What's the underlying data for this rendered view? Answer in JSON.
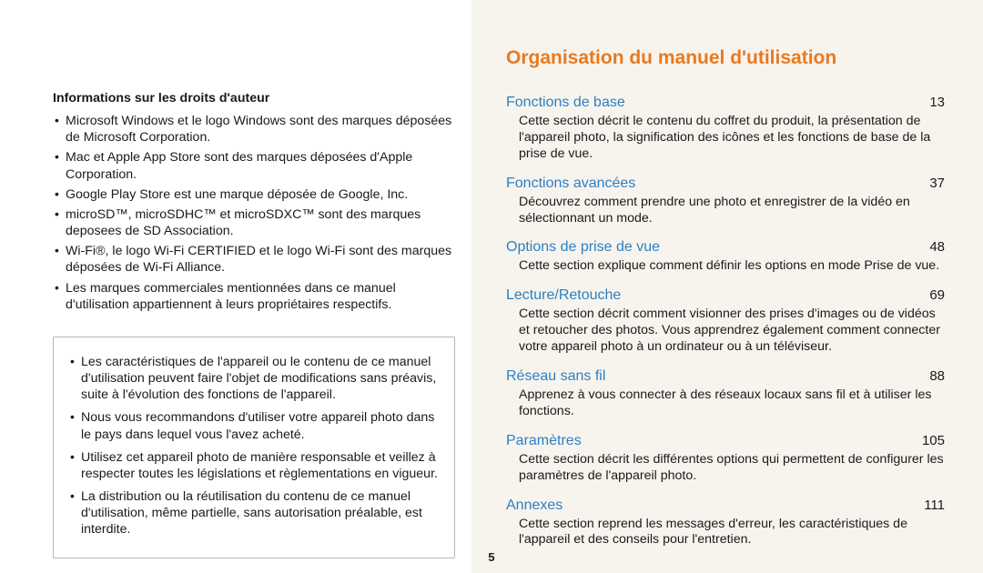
{
  "left": {
    "heading": "Informations sur les droits d'auteur",
    "bullets": [
      "Microsoft Windows et le logo Windows sont des marques déposées de Microsoft Corporation.",
      "Mac et Apple App Store sont des marques déposées d'Apple Corporation.",
      "Google Play Store est une marque déposée de Google, Inc.",
      "microSD™, microSDHC™ et microSDXC™ sont des marques deposees de SD Association.",
      "Wi-Fi®, le logo Wi-Fi CERTIFIED et le logo Wi-Fi sont des marques déposées de Wi-Fi Alliance.",
      "Les marques commerciales mentionnées dans ce manuel d'utilisation appartiennent à leurs propriétaires respectifs."
    ],
    "boxed_bullets": [
      "Les caractéristiques de l'appareil ou le contenu de ce manuel d'utilisation peuvent faire l'objet de modifications sans préavis, suite à l'évolution des fonctions de l'appareil.",
      "Nous vous recommandons d'utiliser votre appareil photo dans le pays dans lequel vous l'avez acheté.",
      "Utilisez cet appareil photo de manière responsable et veillez à respecter toutes les législations et règlementations en vigueur.",
      "La distribution ou la réutilisation du contenu de ce manuel d'utilisation, même partielle, sans autorisation préalable, est interdite."
    ]
  },
  "right": {
    "title": "Organisation du manuel d'utilisation",
    "items": [
      {
        "title": "Fonctions de base",
        "page": "13",
        "desc": "Cette section décrit le contenu du coffret du produit, la présentation de l'appareil photo, la signification des icônes et les fonctions de base de la prise de vue."
      },
      {
        "title": "Fonctions avancées",
        "page": "37",
        "desc": "Découvrez comment prendre une photo et enregistrer de la vidéo en sélectionnant un mode."
      },
      {
        "title": "Options de prise de vue",
        "page": "48",
        "desc": "Cette section explique comment définir les options en mode Prise de vue."
      },
      {
        "title": "Lecture/Retouche",
        "page": "69",
        "desc": "Cette section décrit comment visionner des prises d'images ou de vidéos et retoucher des photos. Vous apprendrez également comment connecter votre appareil photo à un ordinateur ou à un téléviseur."
      },
      {
        "title": "Réseau sans fil",
        "page": "88",
        "desc": "Apprenez à vous connecter à des réseaux locaux sans fil et à utiliser les fonctions."
      },
      {
        "title": "Paramètres",
        "page": "105",
        "desc": "Cette section décrit les différentes options qui permettent de configurer les paramètres de l'appareil photo."
      },
      {
        "title": "Annexes",
        "page": "111",
        "desc": "Cette section reprend les messages d'erreur, les caractéristiques de l'appareil et des conseils pour l'entretien."
      }
    ]
  },
  "page_number": "5",
  "colors": {
    "title_orange": "#e87a1f",
    "link_blue": "#2d7fc4",
    "right_bg": "#f7f4ee",
    "border": "#b8b8b8",
    "text": "#1a1a1a"
  }
}
